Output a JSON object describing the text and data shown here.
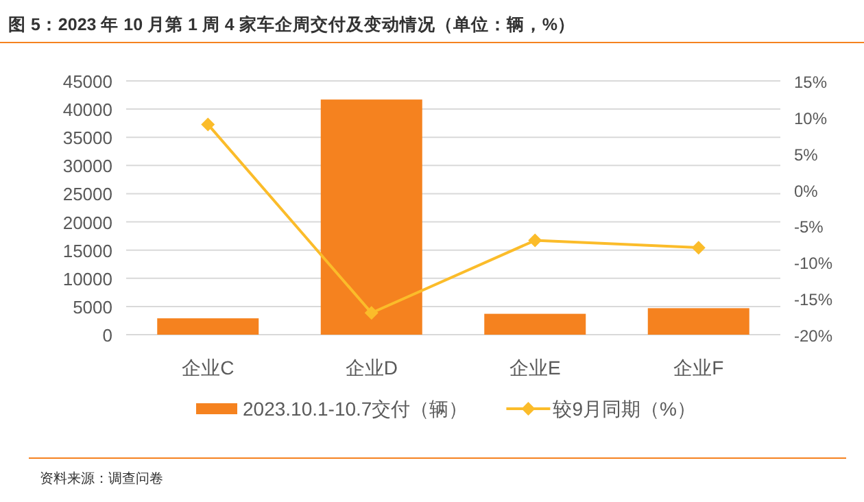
{
  "chart_data": {
    "type": "bar",
    "title": "图 5：2023 年 10 月第 1 周 4 家车企周交付及变动情况（单位：辆，%）",
    "categories": [
      "企业C",
      "企业D",
      "企业E",
      "企业F"
    ],
    "series": [
      {
        "name": "2023.10.1-10.7交付（辆）",
        "color": "#f5821f",
        "values": [
          2900,
          41700,
          3700,
          4700
        ]
      },
      {
        "name": "较9月同期（%）",
        "type": "line",
        "axis": "y2",
        "color": "#fbbc2a",
        "marker": "diamond",
        "values": [
          9,
          -17,
          -7,
          -8
        ]
      }
    ],
    "ylim": [
      0,
      45000
    ],
    "yticks": [
      0,
      5000,
      10000,
      15000,
      20000,
      25000,
      30000,
      35000,
      40000,
      45000
    ],
    "y2lim": [
      -20,
      15
    ],
    "y2ticks": [
      {
        "value": -20,
        "label": "-20%"
      },
      {
        "value": -15,
        "label": "-15%"
      },
      {
        "value": -10,
        "label": "-10%"
      },
      {
        "value": -5,
        "label": "-5%"
      },
      {
        "value": 0,
        "label": "0%"
      },
      {
        "value": 5,
        "label": "5%"
      },
      {
        "value": 10,
        "label": "10%"
      },
      {
        "value": 15,
        "label": "15%"
      }
    ],
    "grid": "y",
    "legend": "bottom",
    "annotations": [
      "资料来源：调查问卷"
    ]
  }
}
